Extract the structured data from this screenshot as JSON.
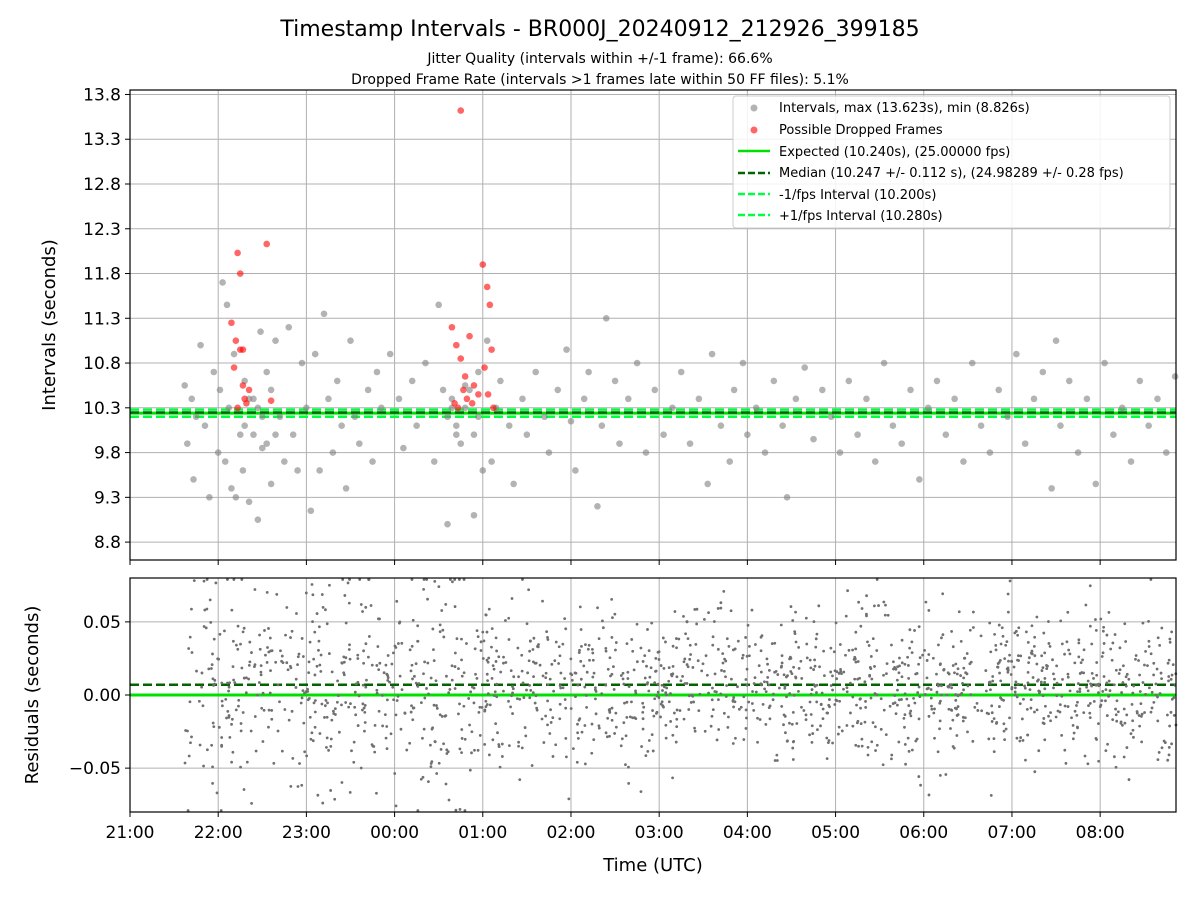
{
  "chart_data": [
    {
      "type": "scatter",
      "title": "Timestamp Intervals - BR000J_20240912_212926_399185",
      "subtitle_lines": [
        "Jitter Quality (intervals within +/-1 frame): 66.6%",
        "Dropped Frame Rate (intervals >1 frames late within 50 FF files): 5.1%"
      ],
      "ylabel": "Intervals (seconds)",
      "ylim": [
        8.6,
        13.85
      ],
      "yticks": [
        "8.8",
        "9.3",
        "9.8",
        "10.3",
        "10.8",
        "11.3",
        "11.8",
        "12.3",
        "12.8",
        "13.3",
        "13.8"
      ],
      "ytick_values": [
        8.8,
        9.3,
        9.8,
        10.3,
        10.8,
        11.3,
        11.8,
        12.3,
        12.8,
        13.3,
        13.8
      ],
      "xlim_hours": [
        21.0,
        32.86
      ],
      "grid": true,
      "legend_position": "top-right",
      "legend": [
        {
          "label": "Intervals, max (13.623s), min (8.826s)",
          "style": "gray-dot"
        },
        {
          "label": "Possible Dropped Frames",
          "style": "red-dot"
        },
        {
          "label": "Expected (10.240s), (25.00000 fps)",
          "style": "green-solid"
        },
        {
          "label": "Median (10.247 +/- 0.112 s), (24.98289 +/- 0.28 fps)",
          "style": "darkgreen-dashed"
        },
        {
          "label": "-1/fps Interval (10.200s)",
          "style": "lime-dashed"
        },
        {
          "label": "+1/fps Interval (10.280s)",
          "style": "lime-dashed"
        }
      ],
      "expected": 10.24,
      "median": 10.247,
      "minus_interval": 10.2,
      "plus_interval": 10.28,
      "series": [
        {
          "name": "Intervals, max (13.623s), min (8.826s)",
          "color": "#808080",
          "points": [
            [
              21.62,
              10.55
            ],
            [
              21.65,
              9.9
            ],
            [
              21.7,
              10.4
            ],
            [
              21.72,
              9.5
            ],
            [
              21.75,
              10.2
            ],
            [
              21.8,
              11.0
            ],
            [
              21.85,
              10.1
            ],
            [
              21.9,
              9.3
            ],
            [
              21.95,
              10.7
            ],
            [
              22.0,
              9.8
            ],
            [
              22.02,
              10.5
            ],
            [
              22.05,
              11.7
            ],
            [
              22.08,
              9.7
            ],
            [
              22.1,
              11.45
            ],
            [
              22.12,
              10.3
            ],
            [
              22.15,
              9.4
            ],
            [
              22.18,
              10.9
            ],
            [
              22.2,
              9.3
            ],
            [
              22.25,
              10.0
            ],
            [
              22.28,
              9.6
            ],
            [
              22.3,
              10.6
            ],
            [
              22.35,
              9.25
            ],
            [
              22.4,
              10.4
            ],
            [
              22.45,
              9.05
            ],
            [
              22.48,
              11.15
            ],
            [
              22.5,
              9.85
            ],
            [
              22.55,
              10.7
            ],
            [
              22.6,
              9.45
            ],
            [
              22.65,
              11.05
            ],
            [
              22.7,
              10.2
            ],
            [
              22.75,
              9.7
            ],
            [
              22.8,
              11.2
            ],
            [
              22.85,
              10.0
            ],
            [
              22.9,
              9.6
            ],
            [
              22.95,
              10.8
            ],
            [
              23.0,
              10.3
            ],
            [
              23.05,
              9.15
            ],
            [
              23.1,
              10.9
            ],
            [
              23.15,
              9.6
            ],
            [
              23.2,
              11.35
            ],
            [
              23.25,
              10.4
            ],
            [
              23.3,
              9.8
            ],
            [
              23.35,
              10.6
            ],
            [
              23.4,
              10.1
            ],
            [
              23.45,
              9.4
            ],
            [
              23.5,
              11.05
            ],
            [
              23.55,
              10.2
            ],
            [
              23.6,
              9.9
            ],
            [
              23.7,
              10.5
            ],
            [
              23.75,
              9.7
            ],
            [
              23.8,
              10.7
            ],
            [
              23.85,
              10.3
            ],
            [
              23.95,
              10.9
            ],
            [
              24.05,
              10.4
            ],
            [
              24.1,
              9.85
            ],
            [
              24.2,
              10.6
            ],
            [
              24.25,
              10.1
            ],
            [
              24.35,
              10.8
            ],
            [
              24.45,
              9.7
            ],
            [
              24.5,
              11.45
            ],
            [
              24.55,
              10.5
            ],
            [
              24.6,
              9.0
            ],
            [
              24.65,
              10.3
            ],
            [
              24.7,
              10.0
            ],
            [
              24.8,
              10.55
            ],
            [
              24.9,
              9.1
            ],
            [
              24.95,
              10.2
            ],
            [
              25.0,
              9.6
            ],
            [
              25.05,
              11.05
            ],
            [
              25.1,
              9.7
            ],
            [
              25.15,
              10.3
            ],
            [
              25.2,
              10.6
            ],
            [
              25.3,
              10.1
            ],
            [
              25.35,
              9.45
            ],
            [
              25.45,
              10.4
            ],
            [
              25.5,
              10.0
            ],
            [
              25.6,
              10.7
            ],
            [
              25.7,
              10.2
            ],
            [
              25.75,
              9.8
            ],
            [
              25.85,
              10.5
            ],
            [
              25.95,
              10.95
            ],
            [
              26.0,
              10.15
            ],
            [
              26.05,
              9.6
            ],
            [
              26.15,
              10.4
            ],
            [
              26.2,
              10.7
            ],
            [
              26.3,
              9.2
            ],
            [
              26.35,
              10.1
            ],
            [
              26.4,
              11.3
            ],
            [
              26.5,
              10.6
            ],
            [
              26.55,
              9.9
            ],
            [
              26.65,
              10.4
            ],
            [
              26.75,
              10.8
            ],
            [
              26.85,
              9.8
            ],
            [
              26.95,
              10.5
            ],
            [
              27.05,
              10.0
            ],
            [
              27.15,
              10.3
            ],
            [
              27.25,
              10.7
            ],
            [
              27.35,
              9.9
            ],
            [
              27.45,
              10.4
            ],
            [
              27.55,
              9.45
            ],
            [
              27.6,
              10.9
            ],
            [
              27.7,
              10.1
            ],
            [
              27.8,
              9.7
            ],
            [
              27.85,
              10.5
            ],
            [
              27.95,
              10.8
            ],
            [
              28.0,
              10.0
            ],
            [
              28.1,
              10.3
            ],
            [
              28.2,
              9.8
            ],
            [
              28.3,
              10.6
            ],
            [
              28.4,
              10.1
            ],
            [
              28.45,
              9.3
            ],
            [
              28.55,
              10.4
            ],
            [
              28.65,
              10.75
            ],
            [
              28.75,
              9.95
            ],
            [
              28.85,
              10.5
            ],
            [
              28.95,
              10.2
            ],
            [
              29.05,
              9.8
            ],
            [
              29.15,
              10.6
            ],
            [
              29.25,
              10.0
            ],
            [
              29.35,
              10.4
            ],
            [
              29.45,
              9.7
            ],
            [
              29.55,
              10.8
            ],
            [
              29.65,
              10.1
            ],
            [
              29.75,
              9.9
            ],
            [
              29.85,
              10.5
            ],
            [
              29.95,
              9.5
            ],
            [
              30.05,
              10.3
            ],
            [
              30.15,
              10.6
            ],
            [
              30.25,
              10.0
            ],
            [
              30.35,
              10.4
            ],
            [
              30.45,
              9.7
            ],
            [
              30.55,
              10.8
            ],
            [
              30.65,
              10.1
            ],
            [
              30.75,
              9.8
            ],
            [
              30.85,
              10.5
            ],
            [
              30.95,
              10.2
            ],
            [
              31.05,
              10.9
            ],
            [
              31.15,
              9.9
            ],
            [
              31.25,
              10.4
            ],
            [
              31.35,
              10.7
            ],
            [
              31.45,
              9.4
            ],
            [
              31.5,
              11.05
            ],
            [
              31.55,
              10.1
            ],
            [
              31.65,
              10.6
            ],
            [
              31.75,
              9.8
            ],
            [
              31.85,
              10.4
            ],
            [
              31.95,
              9.45
            ],
            [
              32.05,
              10.8
            ],
            [
              32.15,
              10.0
            ],
            [
              32.25,
              10.3
            ],
            [
              32.35,
              9.7
            ],
            [
              32.45,
              10.6
            ],
            [
              32.55,
              10.1
            ],
            [
              32.65,
              10.4
            ],
            [
              32.75,
              9.8
            ],
            [
              32.85,
              10.65
            ],
            [
              24.6,
              10.2
            ],
            [
              24.65,
              10.4
            ],
            [
              24.7,
              10.1
            ],
            [
              24.75,
              9.9
            ],
            [
              24.8,
              10.3
            ],
            [
              24.85,
              10.5
            ],
            [
              24.9,
              10.0
            ],
            [
              24.95,
              10.7
            ],
            [
              22.3,
              10.1
            ],
            [
              22.35,
              10.4
            ],
            [
              22.4,
              10.0
            ],
            [
              22.45,
              10.3
            ],
            [
              22.5,
              10.2
            ],
            [
              22.55,
              9.9
            ],
            [
              22.6,
              10.5
            ],
            [
              22.65,
              10.0
            ]
          ]
        },
        {
          "name": "Possible Dropped Frames",
          "color": "#ff0000",
          "points": [
            [
              22.22,
              12.03
            ],
            [
              22.25,
              11.8
            ],
            [
              22.55,
              12.13
            ],
            [
              22.15,
              11.25
            ],
            [
              22.2,
              11.05
            ],
            [
              22.25,
              10.95
            ],
            [
              22.28,
              10.55
            ],
            [
              22.3,
              10.4
            ],
            [
              22.18,
              10.75
            ],
            [
              22.32,
              10.35
            ],
            [
              22.35,
              10.5
            ],
            [
              22.22,
              10.3
            ],
            [
              22.6,
              10.38
            ],
            [
              22.28,
              10.95
            ],
            [
              24.75,
              13.62
            ],
            [
              25.0,
              11.9
            ],
            [
              25.05,
              11.65
            ],
            [
              25.08,
              11.45
            ],
            [
              25.1,
              10.95
            ],
            [
              24.65,
              11.2
            ],
            [
              24.7,
              11.0
            ],
            [
              24.75,
              10.85
            ],
            [
              24.8,
              10.65
            ],
            [
              24.85,
              11.1
            ],
            [
              24.9,
              10.55
            ],
            [
              24.95,
              10.45
            ],
            [
              24.68,
              10.35
            ],
            [
              24.72,
              10.3
            ],
            [
              24.78,
              10.5
            ],
            [
              24.82,
              10.4
            ],
            [
              24.88,
              10.35
            ],
            [
              25.02,
              10.75
            ],
            [
              25.06,
              10.45
            ],
            [
              25.12,
              10.3
            ]
          ]
        }
      ]
    },
    {
      "type": "scatter",
      "ylabel": "Residuals (seconds)",
      "xlabel": "Time (UTC)",
      "ylim": [
        -0.08,
        0.08
      ],
      "yticks": [
        "−0.05",
        "0.00",
        "0.05"
      ],
      "ytick_values": [
        -0.05,
        0.0,
        0.05
      ],
      "xticks": [
        "21:00",
        "22:00",
        "23:00",
        "00:00",
        "01:00",
        "02:00",
        "03:00",
        "04:00",
        "05:00",
        "06:00",
        "07:00",
        "08:00"
      ],
      "xtick_hours": [
        21,
        22,
        23,
        24,
        25,
        26,
        27,
        28,
        29,
        30,
        31,
        32
      ],
      "xlim_hours": [
        21.0,
        32.86
      ],
      "grid": true,
      "zero_line": 0.0,
      "median_offset": 0.007,
      "series": [
        {
          "name": "Residuals",
          "color": "#707070",
          "generator": {
            "x_start": 21.62,
            "x_end": 32.86,
            "count": 1700,
            "spread": 0.026,
            "center": 0.007,
            "seed": 7
          }
        }
      ]
    }
  ],
  "colors": {
    "gray_points": "#808080",
    "dropped_points": "#ff0000",
    "expected_line": "#00e000",
    "median_line": "#006400",
    "fps_interval_line": "#00ff40",
    "grid": "#b0b0b0"
  }
}
